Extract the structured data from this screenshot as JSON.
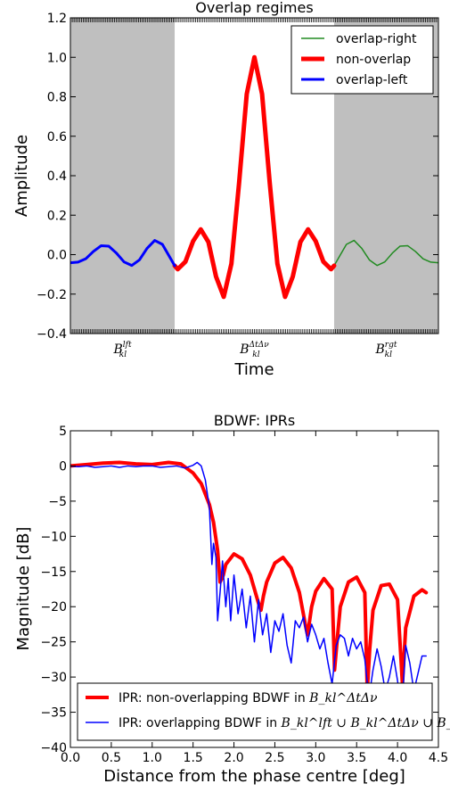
{
  "chart_data": [
    {
      "type": "line",
      "title": "Overlap regimes",
      "xlabel": "Time",
      "ylabel": "Amplitude",
      "xlim": [
        -12,
        12
      ],
      "ylim": [
        -0.4,
        1.2
      ],
      "yticks": [
        -0.4,
        -0.2,
        0.0,
        0.2,
        0.4,
        0.6,
        0.8,
        1.0,
        1.2
      ],
      "ytick_labels": [
        "−0.4",
        "−0.2",
        "0.0",
        "0.2",
        "0.4",
        "0.6",
        "0.8",
        "1.0",
        "1.2"
      ],
      "shaded_regions": [
        [
          -12,
          -5.2
        ],
        [
          5.2,
          12
        ]
      ],
      "region_labels": [
        {
          "x": -8.6,
          "base": "B",
          "sub": "kl",
          "sup": "lft"
        },
        {
          "x": 0,
          "base": "B",
          "sub": "kl",
          "sup": "ΔtΔν"
        },
        {
          "x": 8.6,
          "base": "B",
          "sub": "kl",
          "sup": "rgt"
        }
      ],
      "legend": {
        "placement": "top-right",
        "entries": [
          "overlap-right",
          "non-overlap",
          "overlap-left"
        ]
      },
      "series": [
        {
          "name": "overlap-right",
          "color": "#228B22",
          "width": 1.5,
          "x_range": [
            5.2,
            12
          ],
          "x": [
            5.2,
            5.5,
            6.0,
            6.5,
            7.0,
            7.5,
            8.0,
            8.5,
            9.0,
            9.5,
            10.0,
            10.5,
            11.0,
            11.5,
            12.0
          ],
          "y": [
            -0.056,
            -0.015,
            0.052,
            0.072,
            0.032,
            -0.027,
            -0.055,
            -0.037,
            0.008,
            0.043,
            0.045,
            0.016,
            -0.021,
            -0.038,
            -0.041
          ]
        },
        {
          "name": "non-overlap",
          "color": "#ff0000",
          "width": 5,
          "x_range": [
            -5.2,
            5.2
          ],
          "x": [
            -5.2,
            -5.0,
            -4.5,
            -4.0,
            -3.5,
            -3.0,
            -2.5,
            -2.0,
            -1.5,
            -1.0,
            -0.5,
            0.0,
            0.5,
            1.0,
            1.5,
            2.0,
            2.5,
            3.0,
            3.5,
            4.0,
            4.5,
            5.0,
            5.2
          ],
          "y": [
            -0.056,
            -0.074,
            -0.036,
            0.068,
            0.128,
            0.064,
            -0.112,
            -0.214,
            -0.046,
            0.363,
            0.814,
            1.0,
            0.814,
            0.363,
            -0.046,
            -0.214,
            -0.112,
            0.064,
            0.128,
            0.068,
            -0.036,
            -0.074,
            -0.056
          ]
        },
        {
          "name": "overlap-left",
          "color": "#0000ff",
          "width": 3,
          "x_range": [
            -12,
            -5.2
          ],
          "x": [
            -12.0,
            -11.5,
            -11.0,
            -10.5,
            -10.0,
            -9.5,
            -9.0,
            -8.5,
            -8.0,
            -7.5,
            -7.0,
            -6.5,
            -6.0,
            -5.5,
            -5.2
          ],
          "y": [
            -0.041,
            -0.038,
            -0.021,
            0.016,
            0.045,
            0.043,
            0.008,
            -0.037,
            -0.055,
            -0.027,
            0.032,
            0.072,
            0.052,
            -0.015,
            -0.056
          ]
        }
      ]
    },
    {
      "type": "line",
      "title": "BDWF: IPRs",
      "xlabel": "Distance from the phase centre [deg]",
      "ylabel": "Magnitude [dB]",
      "xlim": [
        0.0,
        4.5
      ],
      "ylim": [
        -40,
        5
      ],
      "xticks": [
        0.0,
        0.5,
        1.0,
        1.5,
        2.0,
        2.5,
        3.0,
        3.5,
        4.0,
        4.5
      ],
      "xtick_labels": [
        "0.0",
        "0.5",
        "1.0",
        "1.5",
        "2.0",
        "2.5",
        "3.0",
        "3.5",
        "4.0",
        "4.5"
      ],
      "yticks": [
        5,
        0,
        -5,
        -10,
        -15,
        -20,
        -25,
        -30,
        -35,
        -40
      ],
      "ytick_labels": [
        "5",
        "0",
        "−5",
        "−10",
        "−15",
        "−20",
        "−25",
        "−30",
        "−35",
        "−40"
      ],
      "legend": {
        "placement": "bottom-left",
        "entries": [
          {
            "prefix": "IPR: non-overlapping BDWF in ",
            "math": "B_kl^ΔtΔν"
          },
          {
            "prefix": "IPR: overlapping BDWF in ",
            "math": "B_kl^lft ∪ B_kl^ΔtΔν ∪ B_kl^rgt"
          }
        ]
      },
      "series": [
        {
          "name": "IPR: non-overlapping BDWF in B_kl^ΔtΔν",
          "color": "#ff0000",
          "width": 4,
          "x": [
            0.0,
            0.2,
            0.4,
            0.6,
            0.8,
            1.0,
            1.2,
            1.35,
            1.5,
            1.6,
            1.7,
            1.75,
            1.8,
            1.83,
            1.87,
            1.9,
            2.0,
            2.1,
            2.2,
            2.3,
            2.33,
            2.36,
            2.4,
            2.5,
            2.6,
            2.7,
            2.8,
            2.88,
            2.9,
            2.95,
            3.0,
            3.1,
            3.2,
            3.23,
            3.26,
            3.3,
            3.4,
            3.5,
            3.6,
            3.63,
            3.66,
            3.7,
            3.8,
            3.9,
            4.0,
            4.06,
            4.1,
            4.2,
            4.3,
            4.35
          ],
          "y": [
            0.0,
            0.2,
            0.4,
            0.5,
            0.3,
            0.2,
            0.5,
            0.3,
            -1.0,
            -2.5,
            -5.5,
            -8.0,
            -12.0,
            -16.5,
            -15.5,
            -14.0,
            -12.5,
            -13.2,
            -15.5,
            -19.5,
            -20.5,
            -18.5,
            -16.5,
            -13.8,
            -13.0,
            -14.5,
            -18.0,
            -23.0,
            -24.0,
            -20.0,
            -17.8,
            -16.0,
            -17.5,
            -29.0,
            -25.0,
            -20.0,
            -16.5,
            -15.8,
            -18.0,
            -32.0,
            -26.0,
            -20.5,
            -17.0,
            -16.8,
            -19.0,
            -31.0,
            -23.0,
            -18.5,
            -17.6,
            -18.0
          ]
        },
        {
          "name": "IPR: overlapping BDWF in B_kl^lft ∪ B_kl^ΔtΔν ∪ B_kl^rgt",
          "color": "#0000ff",
          "width": 1.5,
          "x": [
            0.0,
            0.1,
            0.2,
            0.3,
            0.4,
            0.5,
            0.6,
            0.7,
            0.8,
            0.9,
            1.0,
            1.1,
            1.2,
            1.3,
            1.4,
            1.5,
            1.55,
            1.6,
            1.65,
            1.7,
            1.73,
            1.75,
            1.78,
            1.8,
            1.83,
            1.86,
            1.9,
            1.93,
            1.96,
            2.0,
            2.05,
            2.1,
            2.15,
            2.2,
            2.25,
            2.3,
            2.35,
            2.4,
            2.45,
            2.5,
            2.55,
            2.6,
            2.65,
            2.7,
            2.75,
            2.8,
            2.85,
            2.9,
            2.95,
            3.0,
            3.05,
            3.1,
            3.15,
            3.2,
            3.25,
            3.3,
            3.35,
            3.4,
            3.45,
            3.5,
            3.55,
            3.6,
            3.65,
            3.7,
            3.75,
            3.8,
            3.85,
            3.9,
            3.95,
            4.0,
            4.05,
            4.1,
            4.15,
            4.2,
            4.25,
            4.3,
            4.35
          ],
          "y": [
            0.0,
            -0.1,
            0.0,
            -0.2,
            -0.1,
            0.0,
            -0.2,
            0.0,
            -0.1,
            0.0,
            0.0,
            -0.2,
            -0.1,
            0.0,
            -0.3,
            0.1,
            0.5,
            0.0,
            -2.0,
            -6.0,
            -14.0,
            -11.0,
            -13.0,
            -22.0,
            -18.0,
            -13.5,
            -20.0,
            -16.0,
            -22.0,
            -15.5,
            -21.0,
            -17.5,
            -23.0,
            -18.5,
            -25.0,
            -19.0,
            -24.0,
            -21.0,
            -26.5,
            -22.0,
            -23.5,
            -21.0,
            -25.5,
            -28.0,
            -22.0,
            -23.0,
            -21.5,
            -25.0,
            -22.5,
            -24.0,
            -26.0,
            -24.5,
            -28.0,
            -31.0,
            -25.5,
            -24.0,
            -24.5,
            -27.0,
            -24.5,
            -26.0,
            -25.0,
            -27.5,
            -33.0,
            -29.0,
            -26.0,
            -28.5,
            -32.0,
            -30.0,
            -27.0,
            -30.5,
            -35.0,
            -25.5,
            -28.0,
            -32.0,
            -29.5,
            -27.0,
            -27.0
          ]
        }
      ]
    }
  ]
}
